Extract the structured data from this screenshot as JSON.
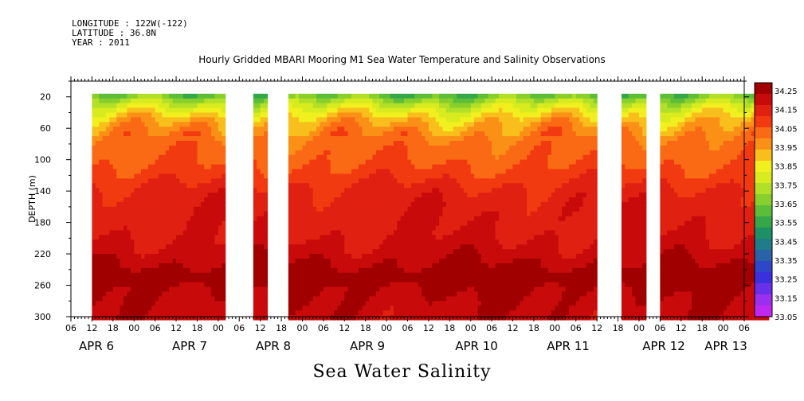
{
  "header": {
    "longitude": "LONGITUDE : 122W(-122)",
    "latitude": "LATITUDE : 36.8N",
    "year": "YEAR : 2011"
  },
  "title": "Hourly Gridded MBARI Mooring M1 Sea Water Temperature and Salinity Observations",
  "bottom_label": "Sea Water Salinity",
  "chart_data": {
    "type": "heatmap",
    "title": "Hourly Gridded MBARI Mooring M1 Sea Water Temperature and Salinity Observations",
    "variable": "Sea Water Salinity",
    "ylabel": "DEPTH (m)",
    "ylim": [
      0,
      300
    ],
    "y_reversed": true,
    "y_ticks": [
      20,
      60,
      100,
      140,
      180,
      220,
      260,
      300
    ],
    "x_hour_ticks": [
      "06",
      "12",
      "18",
      "00",
      "06",
      "12",
      "18",
      "00",
      "06",
      "12",
      "18",
      "00",
      "06",
      "12",
      "18",
      "00",
      "06",
      "12",
      "18",
      "00",
      "06",
      "12",
      "18",
      "00",
      "06",
      "12",
      "18",
      "00",
      "06",
      "12",
      "18",
      "00",
      "06"
    ],
    "x_day_labels": [
      "APR  6",
      "APR  7",
      "APR  8",
      "APR  9",
      "APR 10",
      "APR 11",
      "APR 12",
      "APR 13"
    ],
    "data_gaps_hours": [
      [
        44,
        52
      ],
      [
        56,
        62
      ],
      [
        150,
        157
      ],
      [
        164,
        168
      ]
    ],
    "data_range_hours": [
      6,
      199
    ],
    "colorbar": {
      "levels": [
        "34.25",
        "34.15",
        "34.05",
        "33.95",
        "33.85",
        "33.75",
        "33.65",
        "33.55",
        "33.45",
        "33.35",
        "33.25",
        "33.15",
        "33.05"
      ],
      "colors": [
        "#a00000",
        "#c80a0a",
        "#e02010",
        "#f23a10",
        "#fa6a14",
        "#fb9016",
        "#f8bf1c",
        "#f2ef1e",
        "#d7eb1e",
        "#b2df28",
        "#88cf2c",
        "#5cbe38",
        "#34a848",
        "#1e9066",
        "#207c88",
        "#2a62a8",
        "#3046c8",
        "#3c30de",
        "#6830ea",
        "#9a30ee",
        "#c028f0"
      ],
      "levels_all": [
        34.25,
        34.2,
        34.15,
        34.1,
        34.05,
        34.0,
        33.95,
        33.9,
        33.85,
        33.8,
        33.75,
        33.7,
        33.65,
        33.6,
        33.55,
        33.5,
        33.45,
        33.4,
        33.35,
        33.3,
        33.25,
        33.2,
        33.15,
        33.1,
        33.05
      ],
      "max": 34.25,
      "min": 33.05
    },
    "profile": [
      {
        "depth": 18,
        "value": 33.6
      },
      {
        "depth": 28,
        "value": 33.72
      },
      {
        "depth": 40,
        "value": 33.82
      },
      {
        "depth": 52,
        "value": 33.9
      },
      {
        "depth": 65,
        "value": 33.95
      },
      {
        "depth": 80,
        "value": 33.99
      },
      {
        "depth": 100,
        "value": 34.01
      },
      {
        "depth": 120,
        "value": 34.05
      },
      {
        "depth": 140,
        "value": 34.1
      },
      {
        "depth": 160,
        "value": 34.12
      },
      {
        "depth": 190,
        "value": 34.13
      },
      {
        "depth": 215,
        "value": 34.16
      },
      {
        "depth": 235,
        "value": 34.2
      },
      {
        "depth": 250,
        "value": 34.25
      },
      {
        "depth": 265,
        "value": 34.2
      },
      {
        "depth": 285,
        "value": 34.18
      },
      {
        "depth": 300,
        "value": 34.17
      }
    ]
  }
}
